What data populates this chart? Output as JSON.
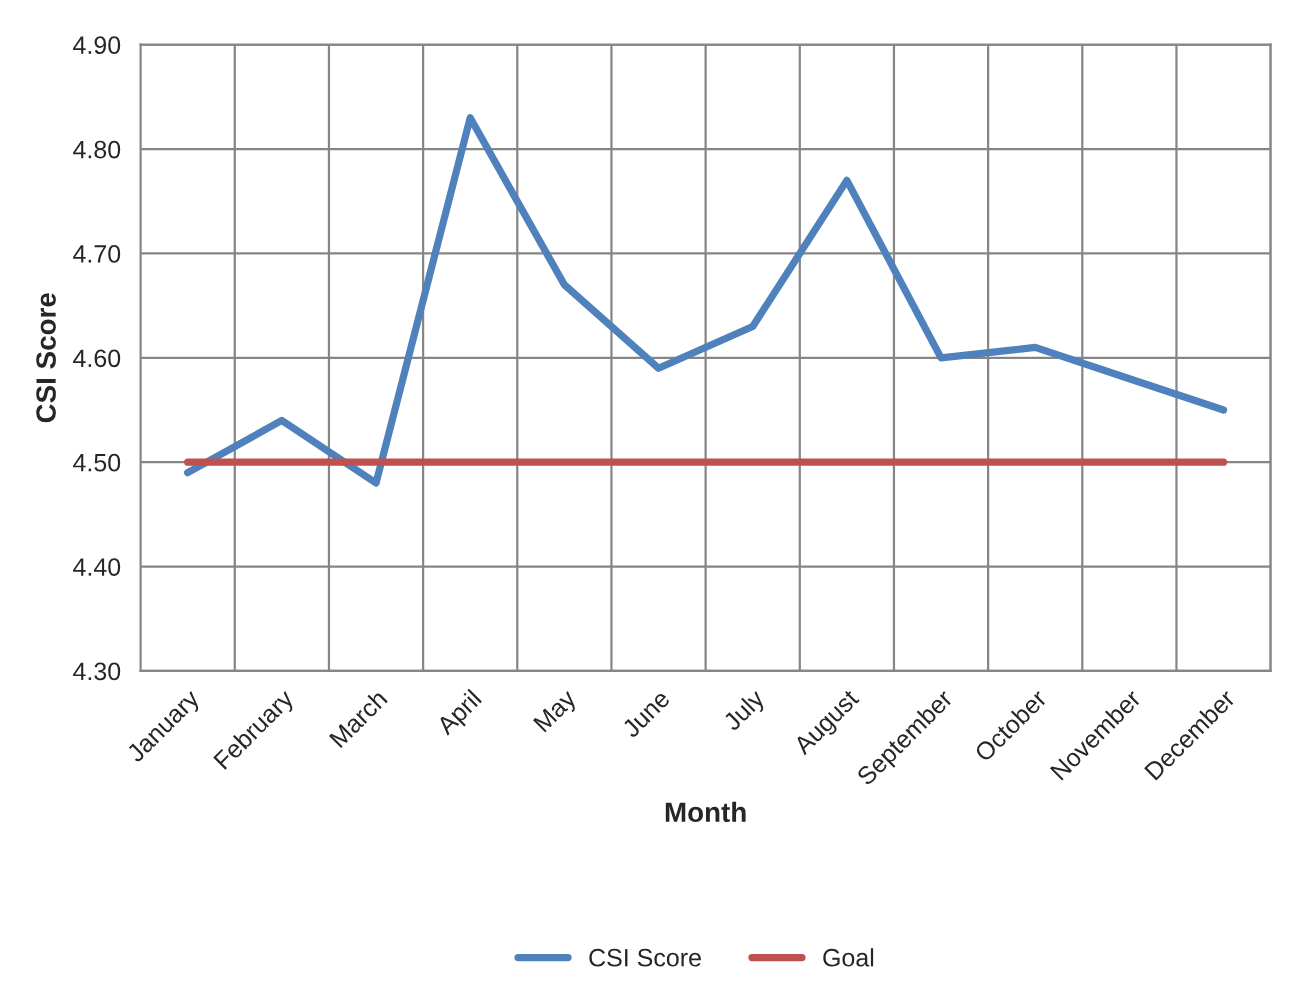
{
  "chart_data": {
    "type": "line",
    "xlabel": "Month",
    "ylabel": "CSI Score",
    "categories": [
      "January",
      "February",
      "March",
      "April",
      "May",
      "June",
      "July",
      "August",
      "September",
      "October",
      "November",
      "December"
    ],
    "series": [
      {
        "name": "CSI Score",
        "color": "#4f81bd",
        "values": [
          4.49,
          4.54,
          4.48,
          4.83,
          4.67,
          4.59,
          4.63,
          4.77,
          4.6,
          4.61,
          4.58,
          4.55
        ]
      },
      {
        "name": "Goal",
        "color": "#c0504d",
        "values": [
          4.5,
          4.5,
          4.5,
          4.5,
          4.5,
          4.5,
          4.5,
          4.5,
          4.5,
          4.5,
          4.5,
          4.5
        ]
      }
    ],
    "ylim": [
      4.3,
      4.9
    ],
    "yticks": [
      {
        "value": 4.3,
        "label": "4.30"
      },
      {
        "value": 4.4,
        "label": "4.40"
      },
      {
        "value": 4.5,
        "label": "4.50"
      },
      {
        "value": 4.6,
        "label": "4.60"
      },
      {
        "value": 4.7,
        "label": "4.70"
      },
      {
        "value": 4.8,
        "label": "4.80"
      },
      {
        "value": 4.9,
        "label": "4.90"
      }
    ],
    "grid": true,
    "legend": "bottom",
    "marker": "none",
    "line_style": "solid"
  }
}
